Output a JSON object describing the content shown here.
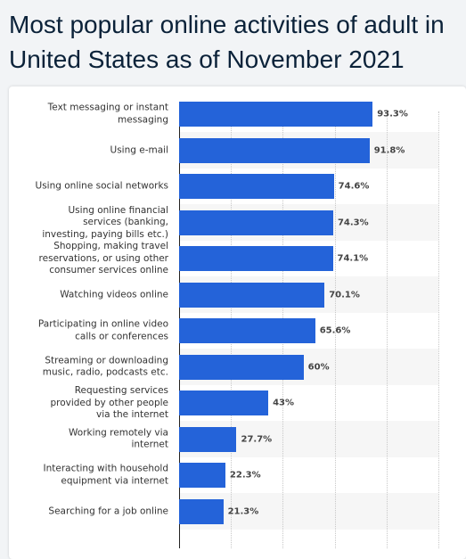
{
  "chart_data": {
    "type": "bar",
    "orientation": "horizontal",
    "title": "Most popular online activities of adult in United States as of November 2021",
    "categories": [
      "Text messaging or instant messaging",
      "Using e-mail",
      "Using online social networks",
      "Using online financial services (banking, investing, paying bills etc.)",
      "Shopping, making travel reservations, or using other consumer services online",
      "Watching videos online",
      "Participating in online video calls or conferences",
      "Streaming or downloading music, radio, podcasts etc.",
      "Requesting services provided by other people via the internet",
      "Working remotely via internet",
      "Interacting with household equipment via internet",
      "Searching for a job online"
    ],
    "values": [
      93.3,
      91.8,
      74.6,
      74.3,
      74.1,
      70.1,
      65.6,
      60,
      43,
      27.7,
      22.3,
      21.3
    ],
    "value_labels": [
      "93.3%",
      "91.8%",
      "74.6%",
      "74.3%",
      "74.1%",
      "70.1%",
      "65.6%",
      "60%",
      "43%",
      "27.7%",
      "22.3%",
      "21.3%"
    ],
    "color": "#2463d9",
    "xlim": [
      0,
      125
    ],
    "xticks": [
      0,
      25,
      50,
      75,
      100,
      125
    ],
    "grid": true
  }
}
